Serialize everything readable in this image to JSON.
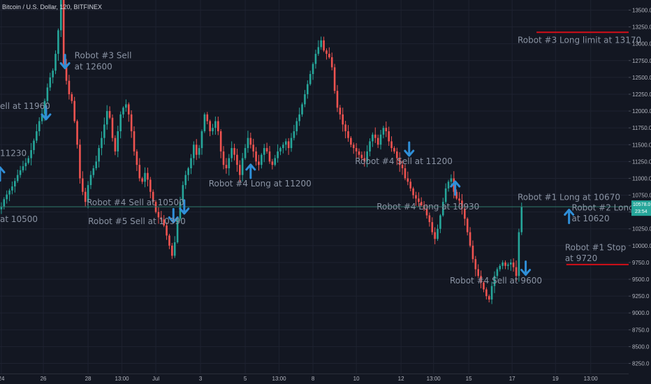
{
  "title": "Bitcoin / U.S. Dollar, 120, BITFINEX",
  "colors": {
    "background": "#131722",
    "grid": "#1e2230",
    "up": "#26a69a",
    "down": "#ef5350",
    "arrow": "#2f8fd8",
    "level_line": "#d40f18",
    "price_line": "#2f7a6d",
    "annotation": "#8a93a3"
  },
  "price_tag": {
    "price": "10578.0",
    "time": "23:54"
  },
  "chart_data": {
    "type": "candlestick",
    "symbol": "BTCUSD",
    "interval": "120",
    "ylim": [
      8100,
      13650
    ],
    "y_ticks": [
      8250,
      8500,
      8750,
      9000,
      9250,
      9500,
      9750,
      10000,
      10250,
      10500,
      10750,
      11000,
      11250,
      11500,
      11750,
      12000,
      12250,
      12500,
      12750,
      13000,
      13250,
      13500
    ],
    "y_tick_labels": [
      "8250.0",
      "8500.0",
      "8750.0",
      "9000.0",
      "9250.0",
      "9500.0",
      "9750.0",
      "10000.0",
      "10250.0",
      "10500.0",
      "10750.0",
      "11000.0",
      "11250.0",
      "11500.0",
      "11750.0",
      "12000.0",
      "12250.0",
      "12500.0",
      "12750.0",
      "13000.0",
      "13250.0",
      "13500.0"
    ],
    "x_ticks": [
      {
        "label": "24",
        "t": 0.5
      },
      {
        "label": "26",
        "t": 16
      },
      {
        "label": "28",
        "t": 32.5
      },
      {
        "label": "13:00",
        "t": 45
      },
      {
        "label": "Jul",
        "t": 57.5
      },
      {
        "label": "3",
        "t": 74
      },
      {
        "label": "5",
        "t": 90.5
      },
      {
        "label": "13:00",
        "t": 103
      },
      {
        "label": "8",
        "t": 115.5
      },
      {
        "label": "10",
        "t": 131.5
      },
      {
        "label": "12",
        "t": 148
      },
      {
        "label": "13:00",
        "t": 160
      },
      {
        "label": "15",
        "t": 173
      },
      {
        "label": "17",
        "t": 189
      },
      {
        "label": "19",
        "t": 205
      },
      {
        "label": "13:00",
        "t": 218
      }
    ],
    "t_range": [
      0,
      232
    ],
    "current_price": 10578,
    "closes": [
      10580,
      10690,
      10760,
      10820,
      10880,
      10960,
      11050,
      11120,
      11180,
      11230,
      11300,
      11420,
      11560,
      11700,
      11850,
      11960,
      12150,
      12350,
      12500,
      12600,
      12850,
      13200,
      13900,
      12700,
      12450,
      12250,
      12150,
      11850,
      11500,
      11000,
      10800,
      10650,
      10900,
      11050,
      11150,
      11250,
      11450,
      11600,
      11800,
      12000,
      11900,
      11600,
      11400,
      11700,
      11950,
      12050,
      12100,
      11950,
      11700,
      11400,
      11200,
      11000,
      10950,
      11080,
      10980,
      10800,
      10650,
      10500,
      10420,
      10390,
      10300,
      10150,
      10000,
      9850,
      10050,
      10400,
      10650,
      10900,
      11050,
      11150,
      11300,
      11500,
      11350,
      11450,
      11700,
      11950,
      11850,
      11700,
      11750,
      11850,
      11700,
      11400,
      11200,
      11150,
      11300,
      11450,
      11350,
      11200,
      11050,
      11300,
      11450,
      11600,
      11500,
      11400,
      11250,
      11200,
      11350,
      11450,
      11400,
      11250,
      11200,
      11300,
      11400,
      11450,
      11500,
      11550,
      11450,
      11600,
      11700,
      11850,
      11950,
      12100,
      12250,
      12400,
      12550,
      12700,
      12850,
      12950,
      13050,
      12900,
      12850,
      12800,
      12650,
      12300,
      12050,
      11950,
      11800,
      11700,
      11600,
      11500,
      11450,
      11400,
      11350,
      11300,
      11250,
      11400,
      11550,
      11650,
      11600,
      11500,
      11650,
      11750,
      11700,
      11550,
      11450,
      11400,
      11300,
      11200,
      11150,
      11000,
      10950,
      10850,
      10750,
      10700,
      10650,
      10600,
      10550,
      10450,
      10350,
      10200,
      10100,
      10250,
      10450,
      10650,
      10850,
      10950,
      11000,
      10800,
      10700,
      10670,
      10550,
      10400,
      10200,
      10000,
      9800,
      9650,
      9550,
      9450,
      9350,
      9250,
      9200,
      9400,
      9550,
      9650,
      9700,
      9750,
      9700,
      9720,
      9750,
      9680,
      9550,
      10200,
      10578
    ],
    "series": [
      {
        "points": []
      }
    ],
    "levels": [
      {
        "price": 13170,
        "t0": 198,
        "t1": 232,
        "color": "#d40f18"
      },
      {
        "price": 9720,
        "t0": 209,
        "t1": 232,
        "color": "#d40f18"
      }
    ],
    "signals": [
      {
        "dir": "up",
        "t": 0,
        "price": 11080
      },
      {
        "dir": "down",
        "t": 17,
        "price": 11960
      },
      {
        "dir": "down",
        "t": 24,
        "price": 12720
      },
      {
        "dir": "down",
        "t": 64,
        "price": 10430
      },
      {
        "dir": "down",
        "t": 68,
        "price": 10560
      },
      {
        "dir": "up",
        "t": 92.5,
        "price": 11120
      },
      {
        "dir": "down",
        "t": 151,
        "price": 11420
      },
      {
        "dir": "up",
        "t": 168,
        "price": 10870
      },
      {
        "dir": "down",
        "t": 194,
        "price": 9650
      },
      {
        "dir": "up",
        "t": 210,
        "price": 10450
      }
    ],
    "annotations": [
      {
        "text": "Robot #3 Sell",
        "t": 27.5,
        "price": 12785
      },
      {
        "text": "at 12600",
        "t": 27.5,
        "price": 12620
      },
      {
        "text": "ell at 11960",
        "t": 0,
        "price": 12030
      },
      {
        "text": "11230",
        "t": 0,
        "price": 11330
      },
      {
        "text": "at 10500",
        "t": 0,
        "price": 10350
      },
      {
        "text": "Robot #4 Sell at 10500",
        "t": 32,
        "price": 10600
      },
      {
        "text": "Robot #5 Sell at 10390",
        "t": 32.5,
        "price": 10320
      },
      {
        "text": "Robot #4 Long at 11200",
        "t": 77,
        "price": 10880
      },
      {
        "text": "Robot #4 Sell at 11200",
        "t": 131,
        "price": 11210
      },
      {
        "text": "Robot #4 Long at 10930",
        "t": 139,
        "price": 10540
      },
      {
        "text": "Robot #3 Long limit at 13170",
        "t": 191,
        "price": 13010
      },
      {
        "text": "Robot #1 Long at 10670",
        "t": 191,
        "price": 10680
      },
      {
        "text": "Robot #2 Long",
        "t": 211,
        "price": 10520
      },
      {
        "text": "at 10620",
        "t": 211,
        "price": 10360
      },
      {
        "text": "Robot #1 Stop",
        "t": 208.5,
        "price": 9930
      },
      {
        "text": "at 9720",
        "t": 208.5,
        "price": 9770
      },
      {
        "text": "Robot #4 Sell at 9600",
        "t": 166,
        "price": 9440
      }
    ]
  }
}
